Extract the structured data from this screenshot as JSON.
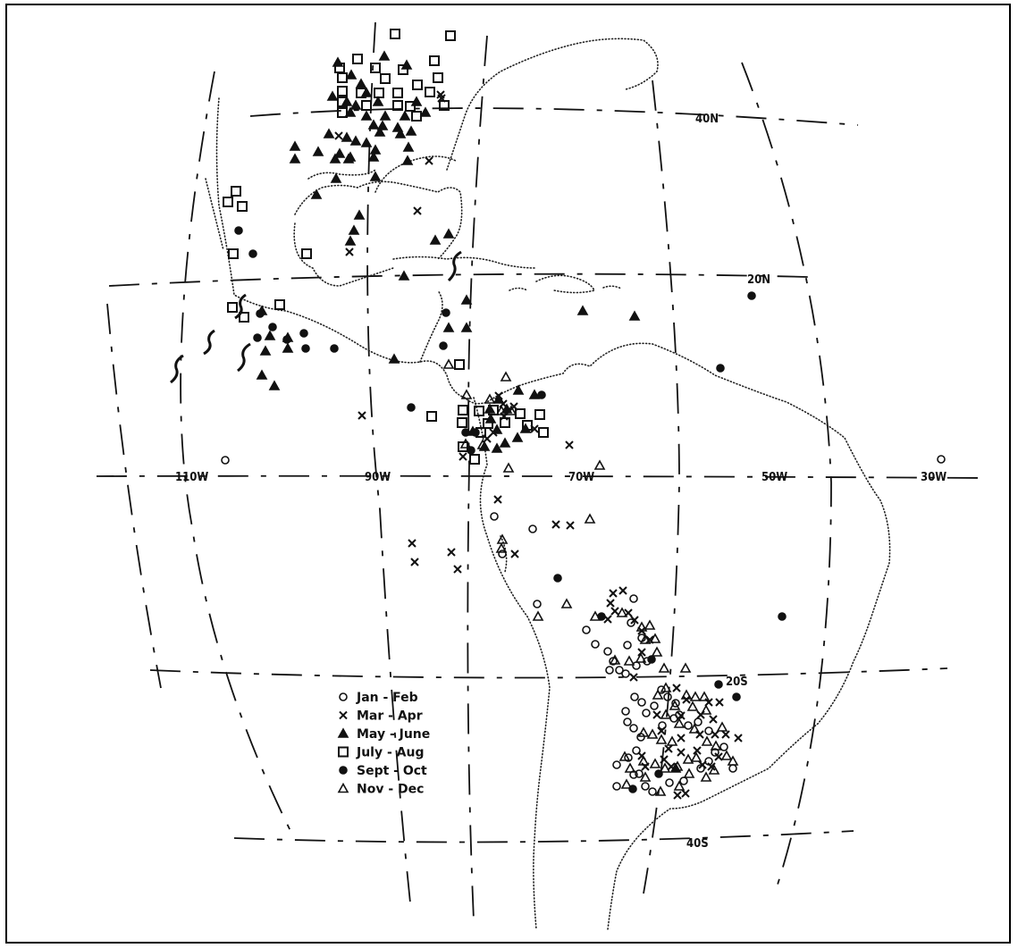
{
  "grid_labels": {
    "lat_40n": "40N",
    "lat_20n": "20N",
    "lat_20s": "20S",
    "lat_40s": "40S",
    "lon_110w": "110W",
    "lon_90w": "90W",
    "lon_70w": "70W",
    "lon_50w": "50W",
    "lon_30w": "30W"
  },
  "legend": {
    "items": [
      {
        "symbol": "open-circle",
        "label": "Jan - Feb"
      },
      {
        "symbol": "cross",
        "label": "Mar - Apr"
      },
      {
        "symbol": "filled-triangle",
        "label": "May - June"
      },
      {
        "symbol": "open-square",
        "label": "July - Aug"
      },
      {
        "symbol": "filled-circle",
        "label": "Sept - Oct"
      },
      {
        "symbol": "open-triangle",
        "label": "Nov - Dec"
      }
    ]
  },
  "colors": {
    "ink": "#111111",
    "background": "#ffffff"
  }
}
